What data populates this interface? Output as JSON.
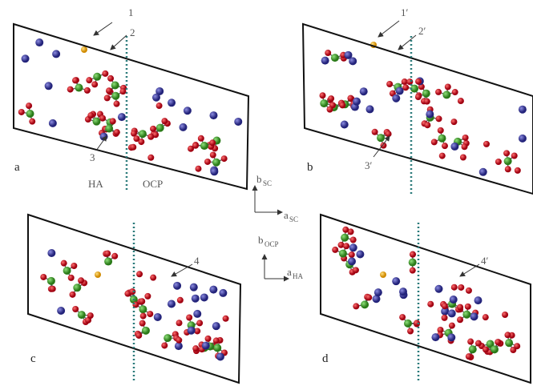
{
  "panels": [
    {
      "label": "a",
      "callouts": [
        "1",
        "2",
        "3"
      ],
      "regions": [
        "HA",
        "OCP"
      ]
    },
    {
      "label": "b",
      "callouts": [
        "1′",
        "2′",
        "3′"
      ]
    },
    {
      "label": "c",
      "callouts": [
        "4"
      ]
    },
    {
      "label": "d",
      "callouts": [
        "4′"
      ]
    }
  ],
  "axes": [
    {
      "vertical": "b",
      "vertical_sub": "SC",
      "horizontal": "a",
      "horizontal_sub": "SC"
    },
    {
      "vertical": "b",
      "vertical_sub": "OCP",
      "horizontal": "a",
      "horizontal_sub": "HA"
    }
  ]
}
